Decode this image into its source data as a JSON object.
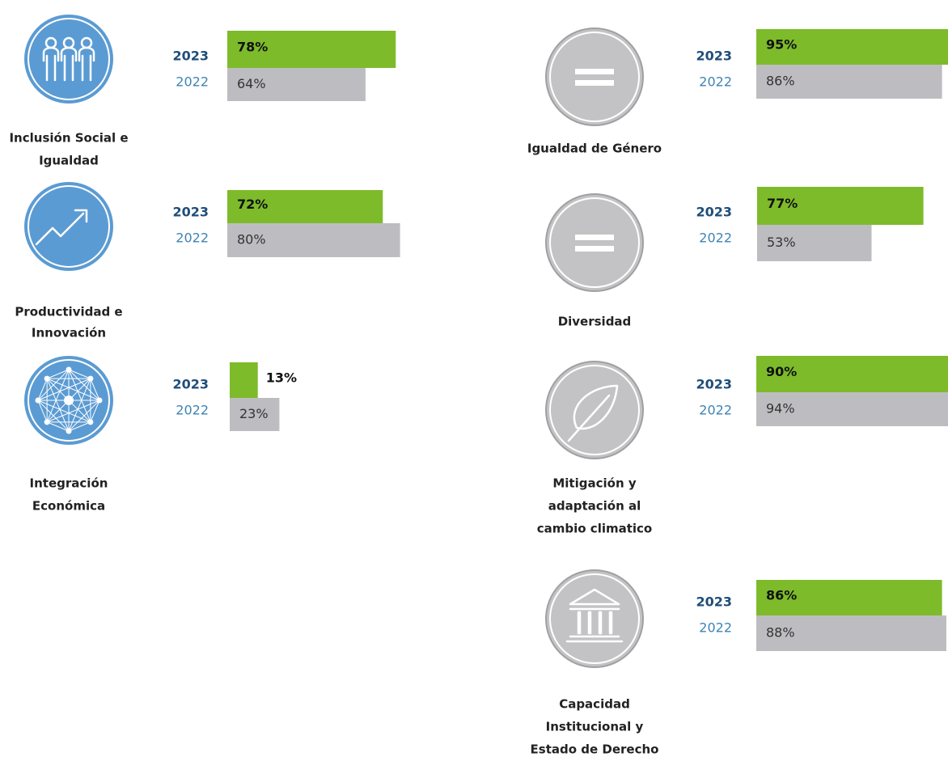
{
  "chart_data": [
    {
      "type": "bar",
      "title": [
        "Inclusión Social e",
        "Igualdad"
      ],
      "categories": [
        "2023",
        "2022"
      ],
      "values": [
        78,
        64
      ],
      "value_labels": [
        "78%",
        "64%"
      ],
      "colors": [
        "#7dbb2a",
        "#bdbdc1"
      ]
    },
    {
      "type": "bar",
      "title": [
        "Productividad e",
        "Innovación"
      ],
      "categories": [
        "2023",
        "2022"
      ],
      "values": [
        72,
        80
      ],
      "value_labels": [
        "72%",
        "80%"
      ],
      "colors": [
        "#7dbb2a",
        "#bdbdc1"
      ]
    },
    {
      "type": "bar",
      "title": [
        "Integración",
        "Económica"
      ],
      "categories": [
        "2023",
        "2022"
      ],
      "values": [
        13,
        23
      ],
      "value_labels": [
        "13%",
        "23%"
      ],
      "colors": [
        "#7dbb2a",
        "#bdbdc1"
      ]
    },
    {
      "type": "bar",
      "title": [
        "Igualdad de Género"
      ],
      "categories": [
        "2023",
        "2022"
      ],
      "values": [
        95,
        86
      ],
      "value_labels": [
        "95%",
        "86%"
      ],
      "colors": [
        "#7dbb2a",
        "#bdbdc1"
      ]
    },
    {
      "type": "bar",
      "title": [
        "Diversidad"
      ],
      "categories": [
        "2023",
        "2022"
      ],
      "values": [
        77,
        53
      ],
      "value_labels": [
        "77%",
        "53%"
      ],
      "colors": [
        "#7dbb2a",
        "#bdbdc1"
      ]
    },
    {
      "type": "bar",
      "title": [
        "Mitigación y",
        "adaptación al",
        "cambio climatico"
      ],
      "categories": [
        "2023",
        "2022"
      ],
      "values": [
        90,
        94
      ],
      "value_labels": [
        "90%",
        "94%"
      ],
      "colors": [
        "#7dbb2a",
        "#bdbdc1"
      ]
    },
    {
      "type": "bar",
      "title": [
        "Capacidad",
        "Institucional y",
        "Estado de Derecho"
      ],
      "categories": [
        "2023",
        "2022"
      ],
      "values": [
        86,
        88
      ],
      "value_labels": [
        "86%",
        "88%"
      ],
      "colors": [
        "#7dbb2a",
        "#bdbdc1"
      ]
    }
  ]
}
